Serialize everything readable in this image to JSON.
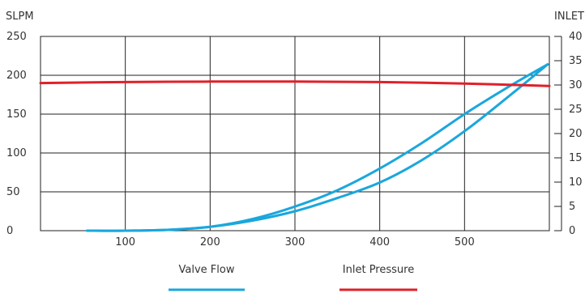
{
  "chart_data": {
    "type": "line",
    "title": "",
    "ylabel_left": "SLPM",
    "ylabel_right": "INLET",
    "xlabel": "",
    "xlim": [
      0,
      600
    ],
    "ylim_left": [
      0,
      250
    ],
    "ylim_right": [
      0,
      40
    ],
    "x_ticks": [
      100,
      200,
      300,
      400,
      500
    ],
    "y_ticks_left": [
      0,
      50,
      100,
      150,
      200,
      250
    ],
    "y_ticks_right": [
      0,
      5,
      10,
      15,
      20,
      25,
      30,
      35,
      40
    ],
    "grid": true,
    "legend_position": "bottom",
    "series": [
      {
        "name": "Valve Flow",
        "axis": "left",
        "color": "#1aa7dd",
        "x": [
          55,
          100,
          150,
          200,
          250,
          300,
          350,
          400,
          450,
          500,
          550,
          598
        ],
        "y": [
          0,
          0,
          1,
          5,
          13,
          25,
          42,
          62,
          91,
          128,
          171,
          214
        ]
      },
      {
        "name": "Valve Flow",
        "axis": "left",
        "color": "#1aa7dd",
        "x": [
          55,
          100,
          150,
          200,
          250,
          300,
          350,
          400,
          450,
          500,
          550,
          598
        ],
        "y": [
          0,
          0,
          1,
          5,
          15,
          31,
          52,
          80,
          113,
          150,
          184,
          214
        ]
      },
      {
        "name": "Inlet Pressure",
        "axis": "right",
        "color": "#e0202a",
        "x": [
          0,
          100,
          200,
          300,
          400,
          500,
          600
        ],
        "y": [
          30.4,
          30.6,
          30.7,
          30.7,
          30.6,
          30.3,
          29.8
        ]
      }
    ],
    "legend": [
      {
        "label": "Valve Flow",
        "color": "#1aa7dd"
      },
      {
        "label": "Inlet Pressure",
        "color": "#e0202a"
      }
    ]
  }
}
